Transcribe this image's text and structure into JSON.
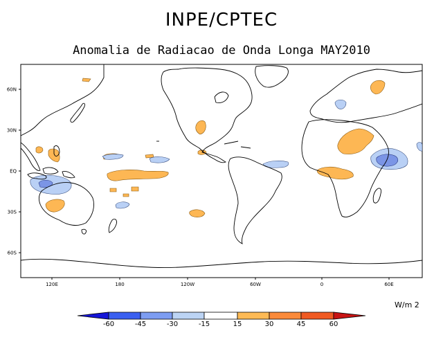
{
  "header": {
    "title": "INPE/CPTEC",
    "subtitle": "Anomalia de Radiacao de Onda Longa MAY2010"
  },
  "axes": {
    "lat_labels": [
      "60N",
      "30N",
      "EQ",
      "30S",
      "60S"
    ],
    "lon_labels": [
      "120E",
      "180",
      "120W",
      "60W",
      "0",
      "60E"
    ]
  },
  "colorbar": {
    "units": "W/m 2",
    "labels": [
      "-60",
      "-45",
      "-30",
      "-15",
      "15",
      "30",
      "45",
      "60"
    ],
    "colors": [
      "#1515d8",
      "#3a5ff0",
      "#7d9df2",
      "#bcd4f4",
      "#ffffff",
      "#fdba55",
      "#fb8a3a",
      "#f05a22",
      "#c81414"
    ]
  },
  "map_colors": {
    "positive": "#fdb754",
    "negative": "#b9d0f5",
    "negative_strong": "#7b95e6"
  }
}
